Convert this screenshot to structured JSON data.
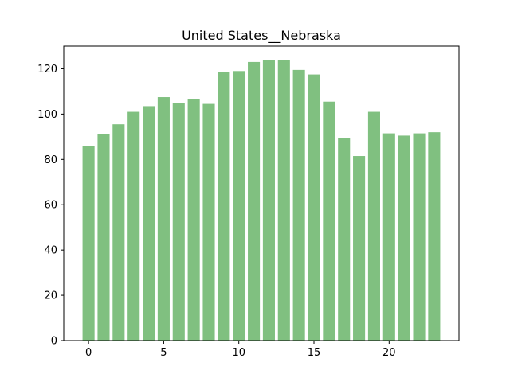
{
  "chart_data": {
    "type": "bar",
    "title": "United States__Nebraska",
    "xlabel": "",
    "ylabel": "",
    "x": [
      0,
      1,
      2,
      3,
      4,
      5,
      6,
      7,
      8,
      9,
      10,
      11,
      12,
      13,
      14,
      15,
      16,
      17,
      18,
      19,
      20,
      21,
      22,
      23
    ],
    "values": [
      86,
      91,
      95.5,
      101,
      103.5,
      107.5,
      105,
      106.5,
      104.5,
      118.5,
      119,
      123,
      124,
      124,
      119.5,
      117.5,
      105.5,
      89.5,
      81.5,
      101,
      91.5,
      90.5,
      91.5,
      92
    ],
    "xlim": [
      -1.65,
      24.65
    ],
    "ylim": [
      0,
      130
    ],
    "xticks": [
      0,
      5,
      10,
      15,
      20
    ],
    "yticks": [
      0,
      20,
      40,
      60,
      80,
      100,
      120
    ],
    "bar_color": "#80c080",
    "grid": false,
    "legend": "none"
  }
}
